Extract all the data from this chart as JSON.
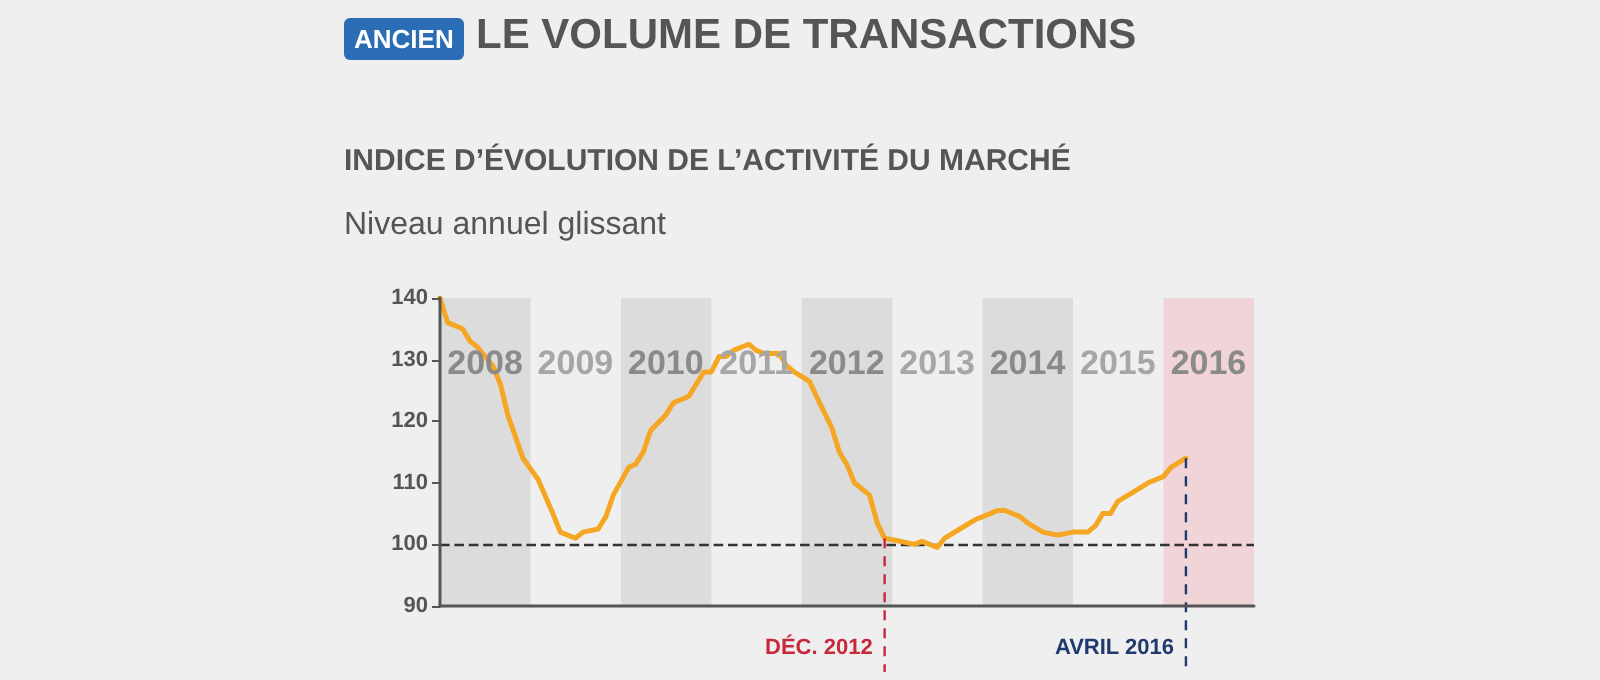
{
  "chart_data": {
    "type": "line",
    "title": "LE VOLUME DE TRANSACTIONS",
    "subtitle": "INDICE D’ÉVOLUTION DE L’ACTIVITÉ DU MARCHÉ",
    "annotations": [
      "ANCIEN",
      "Niveau annuel glissant"
    ],
    "x": [
      "2008-01",
      "2008-02",
      "2008-04",
      "2008-05",
      "2008-06",
      "2008-08",
      "2008-09",
      "2008-10",
      "2008-12",
      "2009-02",
      "2009-04",
      "2009-05",
      "2009-07",
      "2009-08",
      "2009-10",
      "2009-11",
      "2009-12",
      "2010-02",
      "2010-03",
      "2010-04",
      "2010-05",
      "2010-07",
      "2010-08",
      "2010-10",
      "2010-11",
      "2010-12",
      "2011-01",
      "2011-02",
      "2011-03",
      "2011-04",
      "2011-05",
      "2011-06",
      "2011-07",
      "2011-08",
      "2011-10",
      "2011-11",
      "2011-12",
      "2012-02",
      "2012-03",
      "2012-05",
      "2012-06",
      "2012-07",
      "2012-08",
      "2012-10",
      "2012-11",
      "2012-12",
      "2013-02",
      "2013-04",
      "2013-05",
      "2013-06",
      "2013-07",
      "2013-08",
      "2013-10",
      "2013-12",
      "2014-02",
      "2014-03",
      "2014-04",
      "2014-06",
      "2014-07",
      "2014-09",
      "2014-11",
      "2015-01",
      "2015-03",
      "2015-04",
      "2015-05",
      "2015-06",
      "2015-07",
      "2015-09",
      "2015-11",
      "2016-01",
      "2016-02",
      "2016-04"
    ],
    "series": [
      {
        "color": "#f5a623",
        "values": [
          140,
          136,
          135,
          133,
          132,
          129,
          126,
          121,
          114,
          110.5,
          105,
          102,
          101,
          102,
          102.5,
          104.5,
          108,
          112.5,
          113,
          115,
          118.5,
          121,
          123,
          124,
          126,
          128,
          128,
          130.5,
          130.5,
          131.5,
          132,
          132.5,
          131.5,
          131,
          131,
          129,
          128,
          126.5,
          124,
          119,
          115,
          113,
          110,
          108,
          103.5,
          101,
          100.5,
          100,
          100.5,
          100,
          99.5,
          101,
          102.5,
          104,
          105,
          105.5,
          105.5,
          104.5,
          103.5,
          102,
          101.5,
          102,
          102,
          103,
          105,
          105,
          107,
          108.5,
          110,
          111,
          112.5,
          114
        ]
      }
    ],
    "xlim": [
      "2008-01",
      "2017-01"
    ],
    "xticks": [
      {
        "value": "2008-07",
        "label": "2008"
      },
      {
        "value": "2009-07",
        "label": "2009"
      },
      {
        "value": "2010-07",
        "label": "2010"
      },
      {
        "value": "2011-07",
        "label": "2011"
      },
      {
        "value": "2012-07",
        "label": "2012"
      },
      {
        "value": "2013-07",
        "label": "2013"
      },
      {
        "value": "2014-07",
        "label": "2014"
      },
      {
        "value": "2015-07",
        "label": "2015"
      },
      {
        "value": "2016-07",
        "label": "2016"
      }
    ],
    "ylim": [
      90,
      140
    ],
    "yticks": [
      90,
      100,
      110,
      120,
      130,
      140
    ],
    "bands": [
      {
        "axis": "x",
        "from": "2008-01",
        "to": "2009-01",
        "color": "#dcdcdc"
      },
      {
        "axis": "x",
        "from": "2010-01",
        "to": "2011-01",
        "color": "#dcdcdc"
      },
      {
        "axis": "x",
        "from": "2012-01",
        "to": "2013-01",
        "color": "#dcdcdc"
      },
      {
        "axis": "x",
        "from": "2014-01",
        "to": "2015-01",
        "color": "#dcdcdc"
      },
      {
        "axis": "x",
        "from": "2016-01",
        "to": "2017-01",
        "color": "#f0d4d7"
      }
    ],
    "ref_lines": [
      {
        "axis": "y",
        "value": 100,
        "color": "#333333",
        "line_style": "dashed"
      },
      {
        "axis": "x",
        "value": "2012-12",
        "label": "DÉC. 2012",
        "color": "#c8283c",
        "line_style": "dashed"
      },
      {
        "axis": "x",
        "value": "2016-04",
        "label": "AVRIL 2016",
        "color": "#1f3a6e",
        "line_style": "dashed"
      }
    ],
    "grid": false,
    "marker": "none",
    "line_style": "solid"
  }
}
